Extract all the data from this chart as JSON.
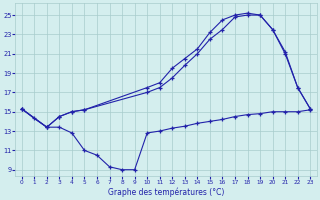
{
  "title": "Graphe des températures (°C)",
  "bg_color": "#d4eeee",
  "grid_color": "#a8cccc",
  "line_color": "#2222aa",
  "yticks": [
    9,
    11,
    13,
    15,
    17,
    19,
    21,
    23,
    25
  ],
  "xticks": [
    0,
    1,
    2,
    3,
    4,
    5,
    6,
    7,
    8,
    9,
    10,
    11,
    12,
    13,
    14,
    15,
    16,
    17,
    18,
    19,
    20,
    21,
    22,
    23
  ],
  "ylim_min": 8.3,
  "ylim_max": 26.2,
  "xlim_min": -0.5,
  "xlim_max": 23.5,
  "series": [
    {
      "x": [
        0,
        1,
        2,
        3,
        4,
        5,
        6,
        7,
        8,
        9,
        10,
        11,
        12,
        13,
        14,
        15,
        16,
        17,
        18,
        19,
        20,
        21,
        22,
        23
      ],
      "y": [
        15.3,
        14.3,
        13.4,
        13.4,
        12.8,
        11.0,
        10.5,
        9.3,
        9.0,
        9.0,
        12.8,
        13.0,
        13.3,
        13.5,
        13.8,
        14.0,
        14.2,
        14.5,
        14.7,
        14.8,
        15.0,
        15.0,
        15.0,
        15.2
      ]
    },
    {
      "x": [
        0,
        2,
        3,
        4,
        5,
        10,
        11,
        12,
        13,
        14,
        15,
        16,
        17,
        18,
        19,
        20,
        21,
        22,
        23
      ],
      "y": [
        15.3,
        13.4,
        14.5,
        15.0,
        15.2,
        17.0,
        17.5,
        18.5,
        19.8,
        21.0,
        22.5,
        23.5,
        24.8,
        25.0,
        25.0,
        23.5,
        21.0,
        17.5,
        15.3
      ]
    },
    {
      "x": [
        0,
        2,
        3,
        4,
        5,
        10,
        11,
        12,
        13,
        14,
        15,
        16,
        17,
        18,
        19,
        20,
        21,
        22,
        23
      ],
      "y": [
        15.3,
        13.4,
        14.5,
        15.0,
        15.2,
        17.5,
        18.0,
        19.5,
        20.5,
        21.5,
        23.2,
        24.5,
        25.0,
        25.2,
        25.0,
        23.5,
        21.2,
        17.5,
        15.3
      ]
    }
  ]
}
